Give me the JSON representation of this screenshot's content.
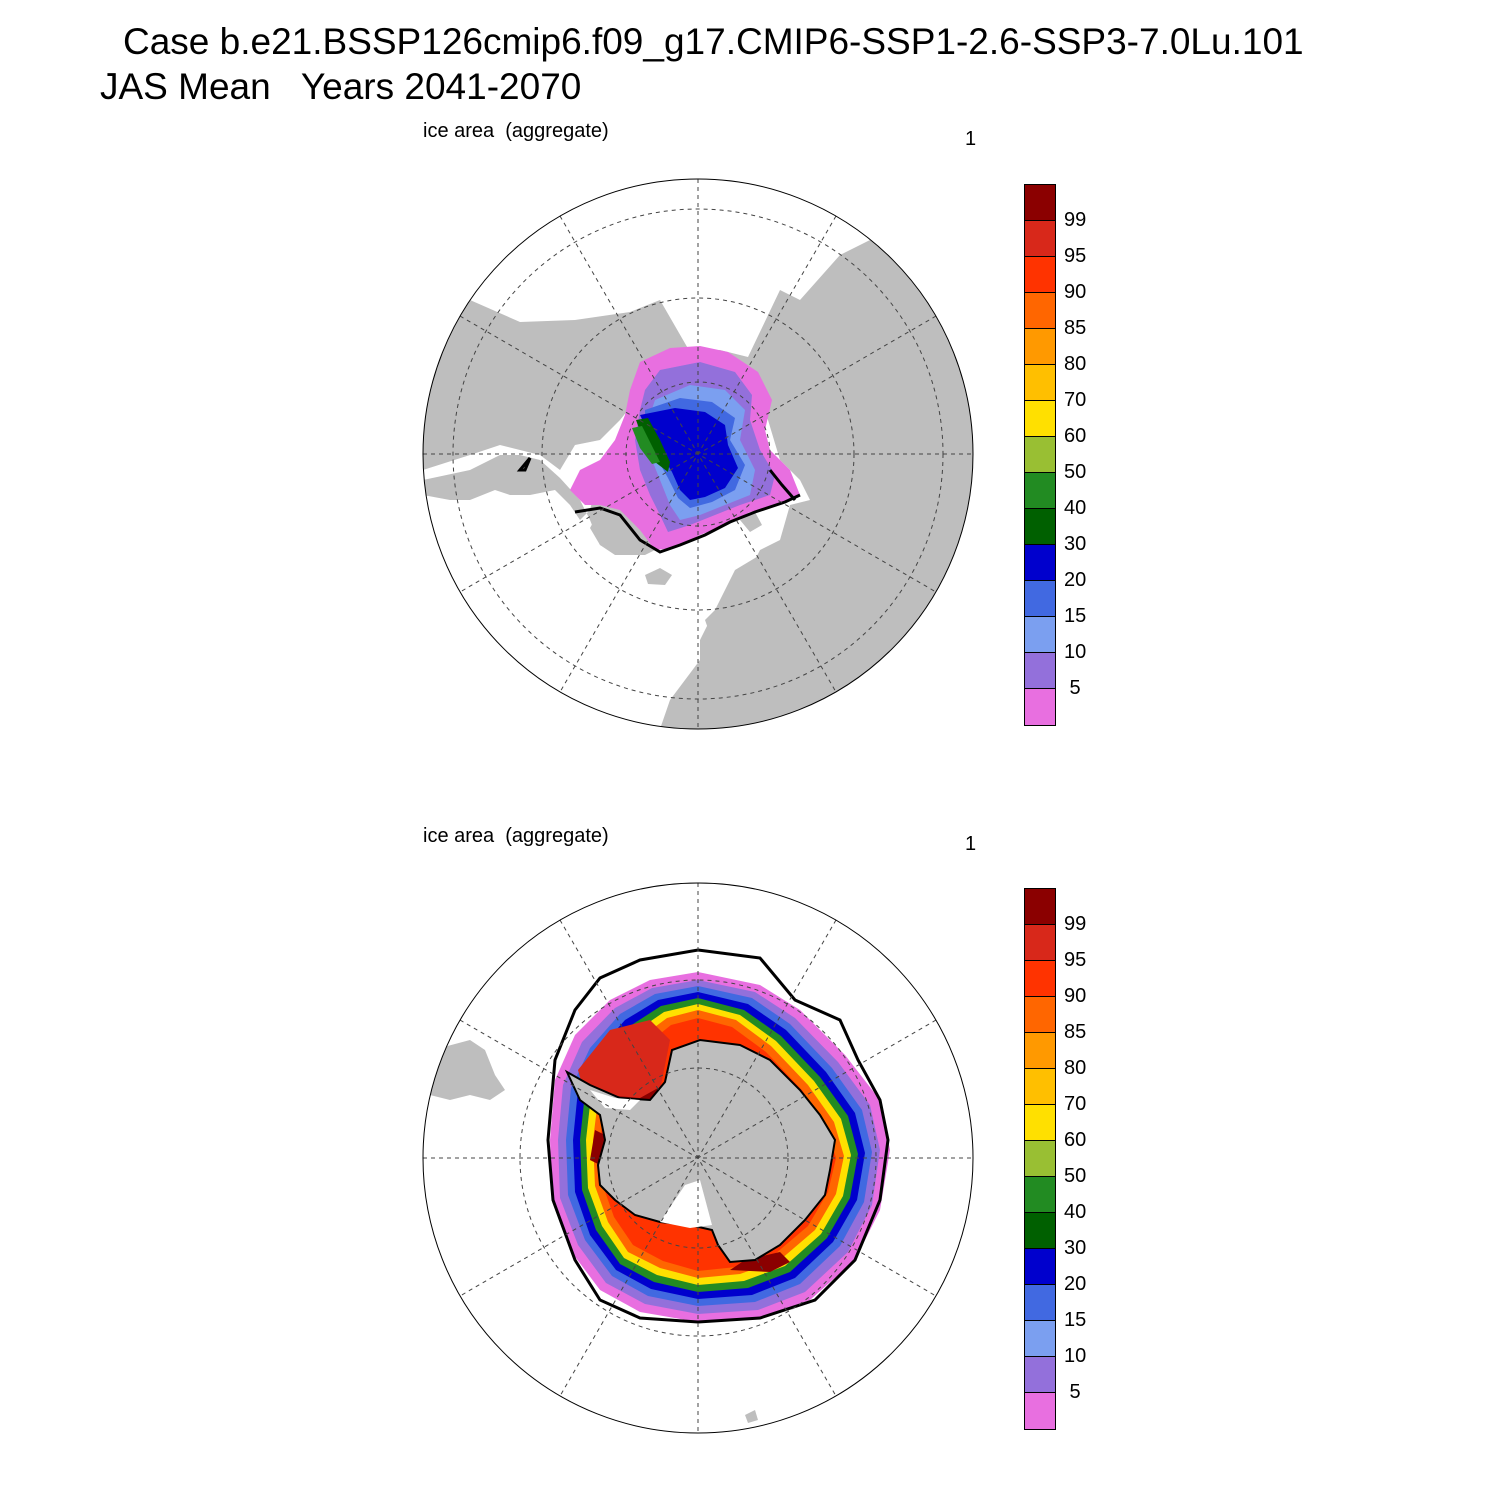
{
  "title": {
    "line1": "Case b.e21.BSSP126cmip6.f09_g17.CMIP6-SSP1-2.6-SSP3-7.0Lu.101",
    "line2": "JAS Mean   Years 2041-2070"
  },
  "panels": [
    {
      "label": "ice area  (aggregate)",
      "number": "1",
      "hemisphere": "north"
    },
    {
      "label": "ice area  (aggregate)",
      "number": "1",
      "hemisphere": "south"
    }
  ],
  "colorbar": {
    "labels": [
      "99",
      "95",
      "90",
      "85",
      "80",
      "70",
      "60",
      "50",
      "40",
      "30",
      "20",
      "15",
      "10",
      "5"
    ],
    "colors": [
      "#8b0000",
      "#d8281a",
      "#ff3300",
      "#ff6600",
      "#ff9900",
      "#ffbf00",
      "#ffe000",
      "#99bf33",
      "#228b22",
      "#006000",
      "#0000cd",
      "#4169e1",
      "#7b9ff0",
      "#9370db",
      "#e86fe0"
    ]
  },
  "colors": {
    "land": "#bebebe",
    "ocean": "#ffffff"
  }
}
